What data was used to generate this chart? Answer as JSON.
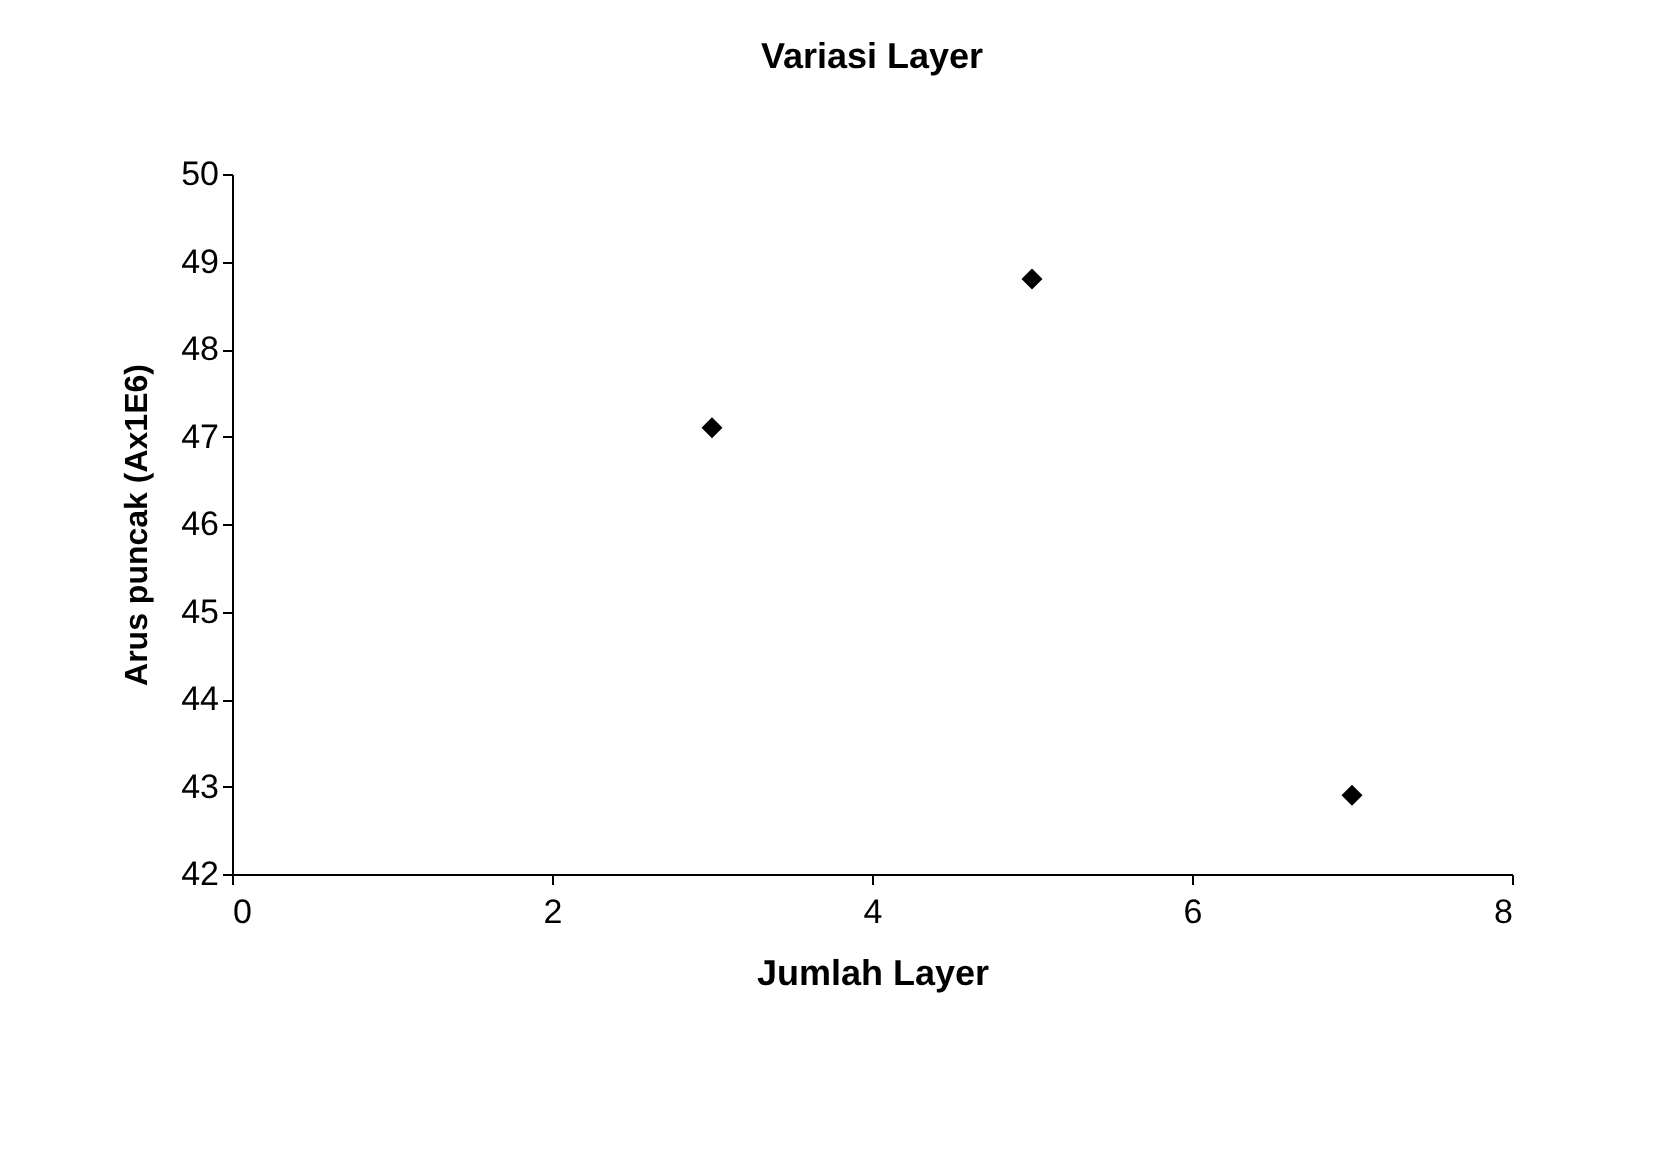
{
  "chart_data": {
    "type": "scatter",
    "title": "Variasi Layer",
    "xlabel": "Jumlah Layer",
    "ylabel": "Arus puncak (Ax1E6)",
    "x": [
      3,
      5,
      7
    ],
    "series": [
      {
        "color": "#000000",
        "values": [
          47.1,
          48.8,
          42.9
        ]
      }
    ],
    "xlim": [
      0,
      8
    ],
    "xticks": [
      0,
      2,
      4,
      6,
      8
    ],
    "ylim": [
      42,
      50
    ],
    "yticks": [
      42,
      43,
      44,
      45,
      46,
      47,
      48,
      49,
      50
    ],
    "marker": "diamond",
    "grid": false,
    "legend": false
  }
}
